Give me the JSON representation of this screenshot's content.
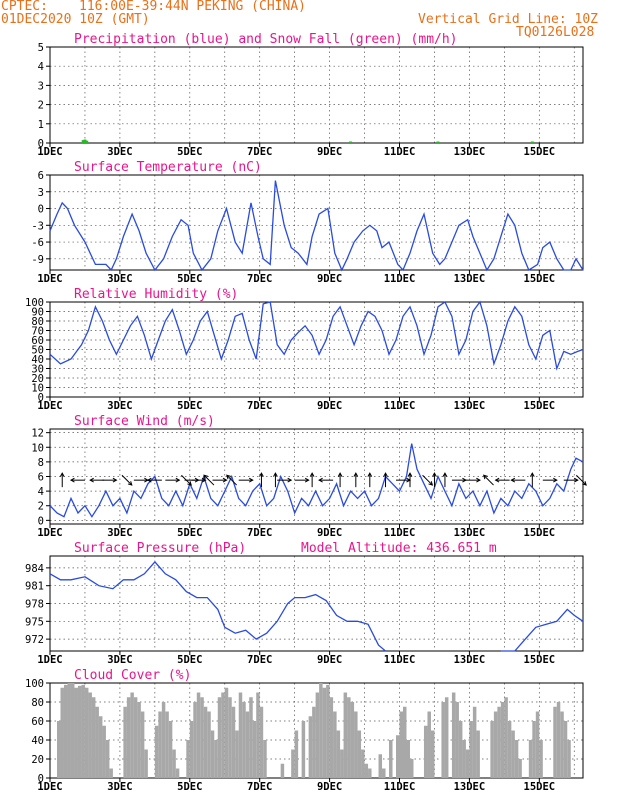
{
  "header": {
    "source": "CPTEC:",
    "location": "116:00E-39:44N   PEKING (CHINA)",
    "run": "01DEC2020 10Z (GMT)",
    "grid_note": "Vertical Grid Line: 10Z",
    "model": "TQ0126L028",
    "altitude": "Model Altitude: 436.651 m"
  },
  "colors": {
    "header": "#e8701a",
    "title": "#e8168c",
    "precip": "#2a4be0",
    "snow": "#22bb22",
    "temp": "#2a4be0",
    "cloud": "#a8a8a8"
  },
  "x_ticks": [
    "1DEC",
    "3DEC",
    "5DEC",
    "7DEC",
    "9DEC",
    "11DEC",
    "13DEC",
    "15DEC"
  ],
  "chart_data": [
    {
      "type": "bar",
      "title": "Precipitation (blue) and Snow Fall (green) (mm/h)",
      "x_range": [
        0,
        15.25
      ],
      "ylim": [
        0,
        5
      ],
      "yticks": [
        "0",
        "1",
        "2",
        "3",
        "4",
        "5"
      ],
      "series": [
        {
          "name": "Precipitation",
          "x": [],
          "values": []
        },
        {
          "name": "Snow Fall",
          "x": [
            0.95,
            1.0,
            1.05,
            8.6,
            11.1,
            13.8
          ],
          "values": [
            0.15,
            0.18,
            0.12,
            0.05,
            0.05,
            0.06
          ]
        }
      ]
    },
    {
      "type": "line",
      "title": "Surface Temperature (nC)",
      "x_range": [
        0,
        15.25
      ],
      "ylim": [
        -11,
        6
      ],
      "yticks": [
        "-9",
        "-6",
        "-3",
        "0",
        "3",
        "6"
      ],
      "series": [
        {
          "x": [
            0,
            0.2,
            0.35,
            0.5,
            0.7,
            1.0,
            1.3,
            1.6,
            1.75,
            1.9,
            2.1,
            2.35,
            2.55,
            2.75,
            3.0,
            3.25,
            3.5,
            3.75,
            3.95,
            4.1,
            4.35,
            4.6,
            4.8,
            5.05,
            5.3,
            5.5,
            5.75,
            5.95,
            6.1,
            6.3,
            6.45,
            6.7,
            6.9,
            7.1,
            7.35,
            7.5,
            7.7,
            7.95,
            8.15,
            8.35,
            8.5,
            8.7,
            8.95,
            9.15,
            9.35,
            9.5,
            9.7,
            9.95,
            10.1,
            10.3,
            10.5,
            10.7,
            10.95,
            11.15,
            11.3,
            11.5,
            11.7,
            11.95,
            12.1,
            12.3,
            12.5,
            12.7,
            12.95,
            13.1,
            13.3,
            13.5,
            13.7,
            13.95,
            14.1,
            14.3,
            14.5,
            14.7,
            14.9,
            15.05,
            15.25
          ],
          "values": [
            -4,
            -1,
            1,
            0,
            -3,
            -6,
            -10,
            -10,
            -11,
            -9,
            -5,
            -1,
            -4,
            -8,
            -11,
            -9,
            -5,
            -2,
            -3,
            -8,
            -11,
            -9,
            -4,
            0,
            -6,
            -8,
            1,
            -5,
            -9,
            -10,
            5,
            -3,
            -7,
            -8,
            -10,
            -5,
            -1,
            0,
            -8,
            -11,
            -9,
            -6,
            -4,
            -3,
            -4,
            -7,
            -6,
            -10,
            -11,
            -8,
            -4,
            -1,
            -8,
            -10,
            -9,
            -6,
            -3,
            -2,
            -5,
            -8,
            -11,
            -9,
            -4,
            -1,
            -3,
            -8,
            -11,
            -10,
            -7,
            -6,
            -9,
            -11,
            -11,
            -9,
            -11
          ]
        }
      ]
    },
    {
      "type": "line",
      "title": "Relative Humidity (%)",
      "x_range": [
        0,
        15.25
      ],
      "ylim": [
        0,
        100
      ],
      "yticks": [
        "0",
        "10",
        "20",
        "30",
        "40",
        "50",
        "60",
        "70",
        "80",
        "90",
        "100"
      ],
      "series": [
        {
          "x": [
            0,
            0.3,
            0.6,
            0.9,
            1.1,
            1.3,
            1.5,
            1.7,
            1.9,
            2.1,
            2.3,
            2.5,
            2.7,
            2.9,
            3.1,
            3.3,
            3.5,
            3.7,
            3.9,
            4.1,
            4.3,
            4.5,
            4.7,
            4.9,
            5.1,
            5.3,
            5.5,
            5.7,
            5.9,
            6.1,
            6.3,
            6.5,
            6.7,
            6.9,
            7.1,
            7.3,
            7.5,
            7.7,
            7.9,
            8.1,
            8.3,
            8.5,
            8.7,
            8.9,
            9.1,
            9.3,
            9.5,
            9.7,
            9.9,
            10.1,
            10.3,
            10.5,
            10.7,
            10.9,
            11.1,
            11.3,
            11.5,
            11.7,
            11.9,
            12.1,
            12.3,
            12.5,
            12.7,
            12.9,
            13.1,
            13.3,
            13.5,
            13.7,
            13.9,
            14.1,
            14.3,
            14.5,
            14.7,
            14.9,
            15.1,
            15.25
          ],
          "values": [
            45,
            35,
            40,
            55,
            70,
            95,
            80,
            60,
            45,
            60,
            75,
            85,
            65,
            40,
            60,
            80,
            92,
            70,
            45,
            60,
            80,
            90,
            65,
            40,
            60,
            85,
            88,
            60,
            40,
            98,
            100,
            55,
            45,
            60,
            68,
            75,
            65,
            45,
            60,
            85,
            95,
            75,
            55,
            75,
            90,
            85,
            70,
            45,
            60,
            85,
            95,
            75,
            45,
            65,
            95,
            100,
            85,
            45,
            60,
            90,
            100,
            75,
            35,
            55,
            80,
            95,
            85,
            55,
            40,
            65,
            70,
            30,
            48,
            45,
            48,
            50
          ]
        }
      ]
    },
    {
      "type": "line",
      "title": "Surface Wind (m/s)",
      "x_range": [
        0,
        15.25
      ],
      "ylim": [
        -0.5,
        12.5
      ],
      "yticks": [
        "0",
        "2",
        "4",
        "6",
        "8",
        "10",
        "12"
      ],
      "series": [
        {
          "x": [
            0,
            0.2,
            0.4,
            0.6,
            0.8,
            1.0,
            1.2,
            1.4,
            1.6,
            1.8,
            2.0,
            2.2,
            2.4,
            2.6,
            2.8,
            3.0,
            3.2,
            3.4,
            3.6,
            3.8,
            4.0,
            4.2,
            4.4,
            4.6,
            4.8,
            5.0,
            5.2,
            5.4,
            5.6,
            5.8,
            6.0,
            6.2,
            6.4,
            6.6,
            6.8,
            7.0,
            7.2,
            7.4,
            7.6,
            7.8,
            8.0,
            8.2,
            8.4,
            8.6,
            8.8,
            9.0,
            9.2,
            9.4,
            9.6,
            9.8,
            10.0,
            10.2,
            10.35,
            10.5,
            10.7,
            10.9,
            11.1,
            11.3,
            11.5,
            11.7,
            11.9,
            12.1,
            12.3,
            12.5,
            12.7,
            12.9,
            13.1,
            13.3,
            13.5,
            13.7,
            13.9,
            14.1,
            14.3,
            14.5,
            14.7,
            14.9,
            15.05,
            15.25
          ],
          "values": [
            2,
            1,
            0.5,
            3,
            1,
            2,
            0.5,
            2,
            4,
            2,
            3,
            1,
            4,
            3,
            5,
            6,
            3,
            2,
            4,
            2,
            5,
            3,
            6,
            3,
            2,
            4,
            6,
            3,
            2,
            4,
            5,
            2,
            3,
            6,
            4,
            1,
            3,
            2,
            4,
            2,
            3,
            5,
            2,
            4,
            3,
            4,
            2,
            3,
            6,
            5,
            4,
            6,
            10.5,
            7,
            5,
            3,
            6,
            4,
            2,
            5,
            3,
            4,
            2,
            4,
            1,
            3,
            2,
            4,
            3,
            5,
            4,
            2,
            3,
            5,
            4,
            7,
            8.5,
            8
          ]
        }
      ],
      "arrows": [
        {
          "x": 0.35,
          "dir": "N"
        },
        {
          "x": 0.8,
          "dir": "W"
        },
        {
          "x": 1.35,
          "dir": "W"
        },
        {
          "x": 1.7,
          "dir": "E"
        },
        {
          "x": 2.2,
          "dir": "SE"
        },
        {
          "x": 2.6,
          "dir": "E"
        },
        {
          "x": 3.0,
          "dir": "W"
        },
        {
          "x": 3.5,
          "dir": "E"
        },
        {
          "x": 3.9,
          "dir": "SE"
        },
        {
          "x": 4.05,
          "dir": "E"
        },
        {
          "x": 4.25,
          "dir": "E"
        },
        {
          "x": 4.55,
          "dir": "NW"
        },
        {
          "x": 4.85,
          "dir": "E"
        },
        {
          "x": 5.2,
          "dir": "NW"
        },
        {
          "x": 5.6,
          "dir": "E"
        },
        {
          "x": 6.05,
          "dir": "N"
        },
        {
          "x": 6.45,
          "dir": "N"
        },
        {
          "x": 6.7,
          "dir": "E"
        },
        {
          "x": 7.2,
          "dir": "E"
        },
        {
          "x": 7.5,
          "dir": "N"
        },
        {
          "x": 7.9,
          "dir": "W"
        },
        {
          "x": 8.3,
          "dir": "N"
        },
        {
          "x": 8.75,
          "dir": "N"
        },
        {
          "x": 9.15,
          "dir": "N"
        },
        {
          "x": 9.6,
          "dir": "N"
        },
        {
          "x": 10.1,
          "dir": "E"
        },
        {
          "x": 10.3,
          "dir": "N"
        },
        {
          "x": 10.8,
          "dir": "SE"
        },
        {
          "x": 11.0,
          "dir": "N"
        },
        {
          "x": 11.3,
          "dir": "N"
        },
        {
          "x": 11.7,
          "dir": "E"
        },
        {
          "x": 12.1,
          "dir": "E"
        },
        {
          "x": 12.55,
          "dir": "NW"
        },
        {
          "x": 12.95,
          "dir": "W"
        },
        {
          "x": 13.4,
          "dir": "W"
        },
        {
          "x": 13.8,
          "dir": "N"
        },
        {
          "x": 14.3,
          "dir": "E"
        },
        {
          "x": 14.9,
          "dir": "E"
        },
        {
          "x": 15.2,
          "dir": "SE"
        }
      ]
    },
    {
      "type": "line",
      "title": "Surface Pressure (hPa)",
      "x_range": [
        0,
        15.25
      ],
      "ylim": [
        970,
        986
      ],
      "yticks": [
        "972",
        "975",
        "978",
        "981",
        "984"
      ],
      "series": [
        {
          "x": [
            0,
            0.3,
            0.6,
            1.0,
            1.4,
            1.8,
            2.1,
            2.4,
            2.7,
            3.0,
            3.3,
            3.6,
            3.9,
            4.2,
            4.5,
            4.8,
            5.0,
            5.3,
            5.6,
            5.9,
            6.2,
            6.5,
            6.8,
            7.0,
            7.3,
            7.6,
            7.9,
            8.2,
            8.5,
            8.8,
            9.1,
            9.4,
            9.6
          ],
          "values": [
            983,
            982,
            982,
            982.5,
            981,
            980.5,
            982,
            982,
            983,
            985,
            983,
            982,
            980,
            979,
            979,
            977,
            974,
            973,
            973.5,
            972,
            973,
            975,
            978,
            979,
            979,
            979.5,
            978.5,
            976,
            975,
            975,
            974.5,
            971,
            969
          ]
        },
        {
          "x": [
            12.9,
            13.3,
            13.6,
            13.9,
            14.2,
            14.5,
            14.8,
            15.0,
            15.25
          ],
          "values": [
            969,
            970,
            972,
            974,
            974.5,
            975,
            977,
            976,
            975
          ]
        }
      ]
    },
    {
      "type": "bar",
      "title": "Cloud Cover (%)",
      "x_range": [
        0,
        15.25
      ],
      "ylim": [
        0,
        100
      ],
      "yticks": [
        "0",
        "20",
        "40",
        "60",
        "80",
        "100"
      ],
      "series": [
        {
          "x": [
            0.3,
            0.4,
            0.5,
            0.6,
            0.7,
            0.8,
            0.9,
            1.0,
            1.1,
            1.2,
            1.3,
            1.4,
            1.5,
            1.6,
            1.7,
            1.8,
            2.2,
            2.3,
            2.4,
            2.5,
            2.6,
            2.7,
            2.8,
            3.1,
            3.2,
            3.3,
            3.4,
            3.5,
            3.6,
            3.7,
            4.0,
            4.1,
            4.2,
            4.3,
            4.4,
            4.5,
            4.6,
            4.7,
            4.8,
            4.9,
            5.0,
            5.1,
            5.2,
            5.3,
            5.4,
            5.5,
            5.6,
            5.7,
            5.8,
            5.9,
            6.0,
            6.1,
            6.2,
            6.7,
            7.0,
            7.1,
            7.3,
            7.5,
            7.6,
            7.7,
            7.8,
            7.9,
            8.0,
            8.1,
            8.2,
            8.3,
            8.4,
            8.5,
            8.6,
            8.7,
            8.8,
            8.9,
            9.0,
            9.1,
            9.2,
            9.5,
            9.6,
            9.8,
            10.0,
            10.1,
            10.2,
            10.3,
            10.4,
            10.8,
            10.9,
            11.0,
            11.3,
            11.4,
            11.6,
            11.7,
            11.8,
            11.9,
            12.0,
            12.1,
            12.2,
            12.3,
            12.7,
            12.8,
            12.9,
            13.0,
            13.1,
            13.2,
            13.3,
            13.4,
            13.5,
            13.8,
            13.9,
            14.0,
            14.1,
            14.5,
            14.6,
            14.7,
            14.8,
            14.9
          ],
          "values": [
            60,
            95,
            98,
            100,
            100,
            95,
            97,
            98,
            95,
            90,
            85,
            75,
            65,
            55,
            40,
            10,
            75,
            85,
            90,
            85,
            80,
            70,
            30,
            55,
            70,
            80,
            70,
            60,
            30,
            10,
            40,
            60,
            80,
            90,
            85,
            75,
            70,
            50,
            40,
            85,
            90,
            95,
            85,
            75,
            50,
            90,
            80,
            70,
            85,
            60,
            90,
            75,
            40,
            15,
            30,
            50,
            60,
            65,
            75,
            90,
            100,
            95,
            98,
            85,
            70,
            50,
            30,
            90,
            85,
            80,
            70,
            50,
            30,
            15,
            10,
            25,
            10,
            40,
            45,
            70,
            75,
            40,
            20,
            55,
            70,
            50,
            80,
            85,
            90,
            80,
            60,
            40,
            30,
            60,
            75,
            50,
            60,
            70,
            75,
            80,
            85,
            60,
            50,
            40,
            20,
            40,
            60,
            70,
            40,
            75,
            80,
            70,
            60,
            40
          ]
        }
      ]
    }
  ]
}
